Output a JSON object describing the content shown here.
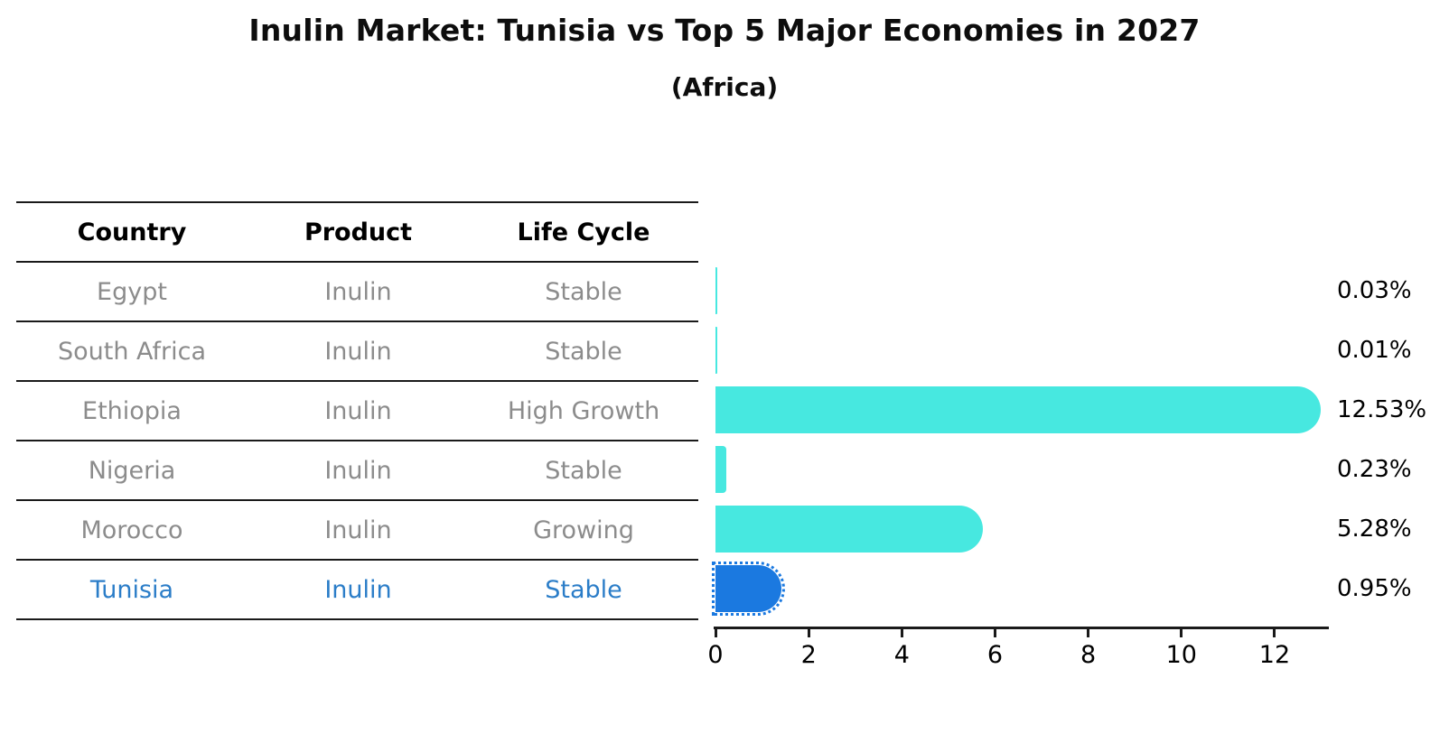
{
  "table": {
    "headers": [
      "Country",
      "Product",
      "Life Cycle"
    ],
    "rows": [
      {
        "country": "Egypt",
        "product": "Inulin",
        "life_cycle": "Stable",
        "highlight": false
      },
      {
        "country": "South Africa",
        "product": "Inulin",
        "life_cycle": "Stable",
        "highlight": false
      },
      {
        "country": "Ethiopia",
        "product": "Inulin",
        "life_cycle": "High Growth",
        "highlight": false
      },
      {
        "country": "Nigeria",
        "product": "Inulin",
        "life_cycle": "Stable",
        "highlight": false
      },
      {
        "country": "Morocco",
        "product": "Inulin",
        "life_cycle": "Growing",
        "highlight": false
      },
      {
        "country": "Tunisia",
        "product": "Inulin",
        "life_cycle": "Stable",
        "highlight": true
      }
    ]
  },
  "chart_data": {
    "type": "bar",
    "orientation": "horizontal",
    "title": "Inulin Market: Tunisia vs Top 5 Major Economies in 2027",
    "subtitle": "(Africa)",
    "categories": [
      "Egypt",
      "South Africa",
      "Ethiopia",
      "Nigeria",
      "Morocco",
      "Tunisia"
    ],
    "values": [
      0.03,
      0.01,
      12.53,
      0.23,
      5.28,
      0.95
    ],
    "value_labels": [
      "0.03%",
      "0.01%",
      "12.53%",
      "0.23%",
      "5.28%",
      "0.95%"
    ],
    "x_ticks": [
      0,
      2,
      4,
      6,
      8,
      10,
      12
    ],
    "xlim": [
      0,
      13.2
    ],
    "grid": false,
    "legend": "none",
    "highlight_index": 5,
    "highlight_category": "Tunisia",
    "bar_color_default": "#47e8e0",
    "bar_color_highlight": "#1b79e0"
  },
  "colors": {
    "text_default": "#0d0d0d",
    "text_muted": "#8c8c8c",
    "text_highlight": "#2b7dc8",
    "axis": "#1a1a1a",
    "background": "#ffffff"
  }
}
